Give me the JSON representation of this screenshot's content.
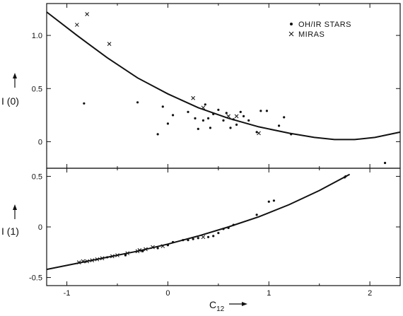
{
  "chart_data": [
    {
      "type": "scatter",
      "panel": "upper",
      "ylabel": "I (0)",
      "xlabel": "",
      "xlim": [
        -1.2,
        2.3
      ],
      "ylim": [
        -0.25,
        1.3
      ],
      "xticks": [
        -1,
        0,
        1,
        2
      ],
      "yticks": [
        0,
        0.5,
        1.0
      ],
      "ytick_labels": [
        "0",
        "0.5",
        "1.0"
      ],
      "grid": false,
      "legend": {
        "placement": "top-right",
        "entries": [
          {
            "marker": "dot",
            "label": "OH/IR STARS"
          },
          {
            "marker": "cross",
            "label": "MIRAS"
          }
        ]
      },
      "series": [
        {
          "name": "OH/IR STARS",
          "marker": "dot",
          "points": [
            [
              -0.83,
              0.36
            ],
            [
              -0.3,
              0.37
            ],
            [
              -0.1,
              0.07
            ],
            [
              -0.05,
              0.33
            ],
            [
              0.0,
              0.17
            ],
            [
              0.05,
              0.25
            ],
            [
              0.2,
              0.28
            ],
            [
              0.27,
              0.22
            ],
            [
              0.3,
              0.12
            ],
            [
              0.35,
              0.2
            ],
            [
              0.37,
              0.35
            ],
            [
              0.4,
              0.22
            ],
            [
              0.42,
              0.13
            ],
            [
              0.45,
              0.26
            ],
            [
              0.5,
              0.3
            ],
            [
              0.55,
              0.2
            ],
            [
              0.58,
              0.27
            ],
            [
              0.62,
              0.13
            ],
            [
              0.65,
              0.21
            ],
            [
              0.68,
              0.16
            ],
            [
              0.72,
              0.28
            ],
            [
              0.75,
              0.24
            ],
            [
              0.8,
              0.2
            ],
            [
              0.88,
              0.09
            ],
            [
              0.92,
              0.29
            ],
            [
              0.98,
              0.29
            ],
            [
              1.1,
              0.15
            ],
            [
              1.15,
              0.23
            ],
            [
              1.22,
              0.07
            ],
            [
              2.15,
              -0.2
            ]
          ]
        },
        {
          "name": "MIRAS",
          "marker": "cross",
          "points": [
            [
              -0.9,
              1.1
            ],
            [
              -0.8,
              1.2
            ],
            [
              -0.58,
              0.92
            ],
            [
              0.25,
              0.41
            ],
            [
              0.35,
              0.32
            ],
            [
              0.6,
              0.24
            ],
            [
              0.68,
              0.24
            ],
            [
              0.9,
              0.08
            ]
          ]
        },
        {
          "name": "",
          "type": "line",
          "x": [
            -1.2,
            -0.9,
            -0.6,
            -0.3,
            0.0,
            0.3,
            0.6,
            0.9,
            1.2,
            1.45,
            1.65,
            1.85,
            2.05,
            2.3
          ],
          "y": [
            1.22,
            1.0,
            0.79,
            0.6,
            0.45,
            0.32,
            0.22,
            0.14,
            0.08,
            0.04,
            0.02,
            0.02,
            0.04,
            0.09
          ]
        }
      ]
    },
    {
      "type": "scatter",
      "panel": "lower",
      "ylabel": "I (1)",
      "xlabel": "C12",
      "xlim": [
        -1.2,
        2.3
      ],
      "ylim": [
        -0.58,
        0.58
      ],
      "xticks": [
        -1,
        0,
        1,
        2
      ],
      "xtick_labels": [
        "-1",
        "0",
        "1",
        "2"
      ],
      "yticks": [
        -0.5,
        0,
        0.5
      ],
      "ytick_labels": [
        "-0.5",
        "0",
        "0.5"
      ],
      "grid": false,
      "series": [
        {
          "name": "OH/IR STARS",
          "marker": "dot",
          "points": [
            [
              -0.6,
              -0.3
            ],
            [
              -0.42,
              -0.28
            ],
            [
              -0.25,
              -0.24
            ],
            [
              -0.1,
              -0.21
            ],
            [
              0.0,
              -0.18
            ],
            [
              0.05,
              -0.15
            ],
            [
              0.15,
              -0.13
            ],
            [
              0.2,
              -0.13
            ],
            [
              0.25,
              -0.12
            ],
            [
              0.3,
              -0.11
            ],
            [
              0.4,
              -0.1
            ],
            [
              0.45,
              -0.09
            ],
            [
              0.5,
              -0.06
            ],
            [
              0.55,
              -0.02
            ],
            [
              0.6,
              -0.01
            ],
            [
              0.65,
              0.02
            ],
            [
              0.88,
              0.12
            ],
            [
              1.0,
              0.25
            ],
            [
              1.05,
              0.26
            ],
            [
              1.75,
              0.49
            ],
            [
              1.76,
              0.5
            ]
          ]
        },
        {
          "name": "MIRAS",
          "marker": "cross",
          "points": [
            [
              -0.88,
              -0.35
            ],
            [
              -0.84,
              -0.34
            ],
            [
              -0.8,
              -0.34
            ],
            [
              -0.75,
              -0.33
            ],
            [
              -0.7,
              -0.32
            ],
            [
              -0.65,
              -0.31
            ],
            [
              -0.55,
              -0.29
            ],
            [
              -0.5,
              -0.28
            ],
            [
              -0.4,
              -0.26
            ],
            [
              -0.3,
              -0.24
            ],
            [
              -0.28,
              -0.23
            ],
            [
              -0.22,
              -0.22
            ],
            [
              -0.15,
              -0.2
            ],
            [
              -0.05,
              -0.19
            ],
            [
              0.35,
              -0.1
            ]
          ]
        },
        {
          "name": "",
          "type": "line",
          "x": [
            -1.2,
            -0.9,
            -0.6,
            -0.3,
            0.0,
            0.3,
            0.6,
            0.9,
            1.2,
            1.5,
            1.8
          ],
          "y": [
            -0.42,
            -0.36,
            -0.3,
            -0.24,
            -0.17,
            -0.09,
            0.0,
            0.1,
            0.22,
            0.36,
            0.52
          ]
        }
      ]
    }
  ]
}
